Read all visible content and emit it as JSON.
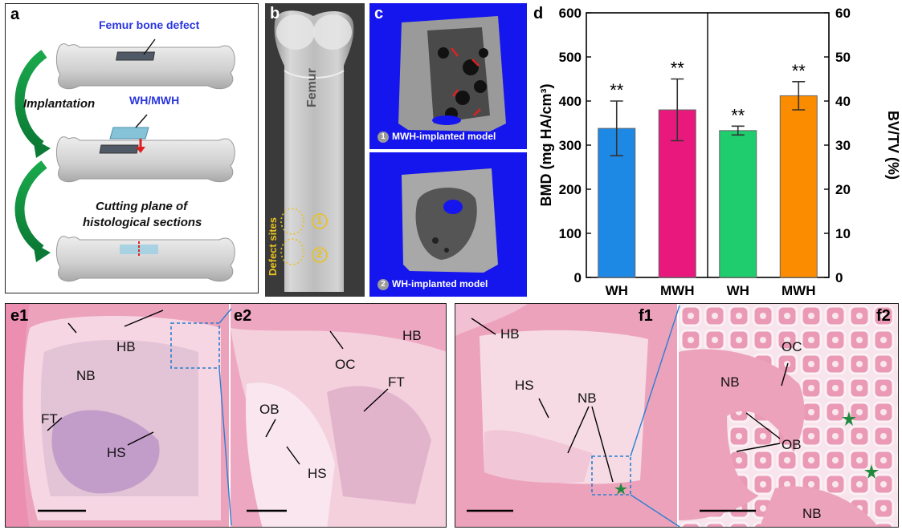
{
  "panel_a": {
    "label": "a",
    "defect_label": "Femur bone defect",
    "implantation_label": "Implantation",
    "implant_label": "WH/MWH",
    "cutting_label_line1": "Cutting plane of",
    "cutting_label_line2": "histological sections"
  },
  "panel_b": {
    "label": "b",
    "femur_label": "Femur",
    "defect_sites_label": "Defect sites",
    "site1": "1",
    "site2": "2"
  },
  "panel_c": {
    "label": "c",
    "top_num": "1",
    "top_caption": "MWH-implanted model",
    "bottom_num": "2",
    "bottom_caption": "WH-implanted model"
  },
  "panel_d": {
    "label": "d"
  },
  "chart_data": {
    "type": "bar",
    "categories": [
      "WH",
      "MWH",
      "WH",
      "MWH"
    ],
    "left_axis": {
      "ylabel": "BMD (mg HA/cm³)",
      "ylim": [
        0,
        600
      ],
      "ticks": [
        "0",
        "100",
        "200",
        "300",
        "400",
        "500",
        "600"
      ],
      "series": [
        {
          "category_index": 0,
          "value": 338,
          "error": 62,
          "color": "#1e88e5",
          "annotation": "**"
        },
        {
          "category_index": 1,
          "value": 380,
          "error": 70,
          "color": "#e8187c",
          "annotation": "**"
        }
      ]
    },
    "right_axis": {
      "ylabel": "BV/TV (%)",
      "ylim": [
        0,
        60
      ],
      "ticks": [
        "0",
        "10",
        "20",
        "30",
        "40",
        "50",
        "60"
      ],
      "series": [
        {
          "category_index": 2,
          "value": 33.3,
          "error": 1.0,
          "color": "#1fcc6e",
          "annotation": "**"
        },
        {
          "category_index": 3,
          "value": 41.2,
          "error": 3.2,
          "color": "#fb8c00",
          "annotation": "**"
        }
      ]
    },
    "divider_after_index": 1,
    "grid": false,
    "legend": "none"
  },
  "panel_e": {
    "label_e1": "e1",
    "label_e2": "e2",
    "e1_tags": [
      "HB",
      "NB",
      "FT",
      "HS"
    ],
    "e2_tags": [
      "HB",
      "OC",
      "FT",
      "OB",
      "HS"
    ]
  },
  "panel_f": {
    "label_f1": "f1",
    "label_f2": "f2",
    "f1_tags": [
      "HB",
      "HS",
      "NB"
    ],
    "f2_tags": [
      "OC",
      "NB",
      "OB",
      "NB"
    ]
  },
  "colors": {
    "tissue_pink": "#eda2bc",
    "tissue_light": "#f6d6e2",
    "tissue_purple": "#b993c6",
    "ct_blue": "#1515ee",
    "arrow_green": "#1aa84c",
    "dashed_box": "#2b7fd0"
  }
}
